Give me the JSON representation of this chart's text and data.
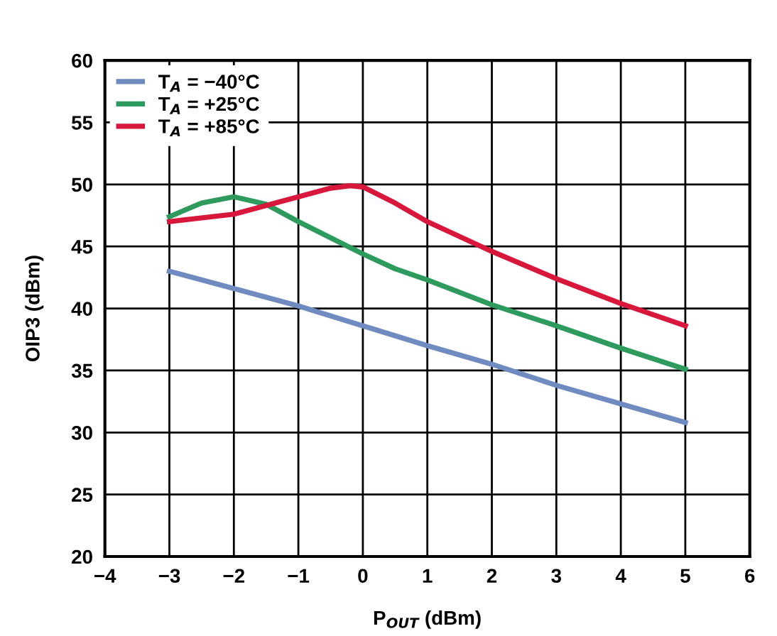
{
  "chart_data": {
    "type": "line",
    "xlabel": "P$_{OUT}$ (dBm)",
    "ylabel": "OIP3 (dBm)",
    "xlim": [
      -4,
      6
    ],
    "ylim": [
      20,
      60
    ],
    "xticks": [
      {
        "value": -4,
        "label": "−4"
      },
      {
        "value": -3,
        "label": "−3"
      },
      {
        "value": -2,
        "label": "−2"
      },
      {
        "value": -1,
        "label": "−1"
      },
      0,
      1,
      2,
      3,
      4,
      5,
      6
    ],
    "yticks": [
      20,
      25,
      30,
      35,
      40,
      45,
      50,
      55,
      60
    ],
    "grid": true,
    "legend": "top left",
    "marker": "none",
    "line_style": "solid",
    "series": [
      {
        "name": "T$_{A}$ = −40°C",
        "color": "#6f8bbf",
        "x": [
          -3,
          -2,
          -1,
          0,
          1,
          2,
          3,
          4,
          5
        ],
        "values": [
          43,
          41.6,
          40.2,
          38.6,
          37,
          35.5,
          33.8,
          32.3,
          30.8
        ]
      },
      {
        "name": "T$_{A}$ = +25°C",
        "color": "#2e9a5e",
        "x": [
          -3,
          -2.5,
          -2,
          -1.5,
          -1,
          0,
          0.5,
          1,
          2,
          3,
          4,
          5
        ],
        "values": [
          47.4,
          48.5,
          49,
          48.4,
          47,
          44.4,
          43.2,
          42.3,
          40.3,
          38.6,
          36.8,
          35.1
        ]
      },
      {
        "name": "T$_{A}$ = +85°C",
        "color": "#d7173c",
        "x": [
          -3,
          -2,
          -1,
          -0.5,
          -0.2,
          0,
          0.5,
          1,
          2,
          3,
          4,
          5
        ],
        "values": [
          47,
          47.6,
          49,
          49.7,
          49.9,
          49.8,
          48.5,
          47,
          44.6,
          42.4,
          40.4,
          38.6
        ]
      }
    ]
  }
}
